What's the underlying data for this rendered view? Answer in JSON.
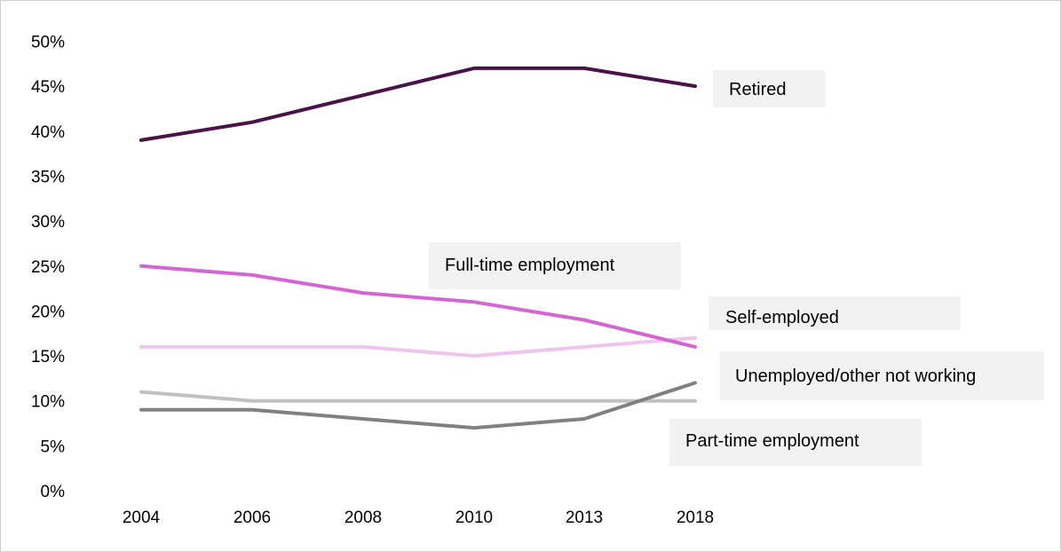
{
  "chart_data": {
    "type": "line",
    "title": "",
    "xlabel": "",
    "ylabel": "",
    "categories": [
      "2004",
      "2006",
      "2008",
      "2010",
      "2013",
      "2018"
    ],
    "ylim": [
      0,
      50
    ],
    "yticks": [
      "0%",
      "5%",
      "10%",
      "15%",
      "20%",
      "25%",
      "30%",
      "35%",
      "40%",
      "45%",
      "50%"
    ],
    "grid": false,
    "legend": "direct-labels",
    "series": [
      {
        "name": "Retired",
        "color": "#4b1248",
        "values": [
          39,
          41,
          44,
          47,
          47,
          45
        ]
      },
      {
        "name": "Full-time employment",
        "color": "#d366d3",
        "values": [
          25,
          24,
          22,
          21,
          19,
          16
        ]
      },
      {
        "name": "Self-employed",
        "color": "#f0c4ee",
        "values": [
          16,
          16,
          16,
          15,
          16,
          17
        ]
      },
      {
        "name": "Unemployed/other not working",
        "color": "#c0c0c0",
        "values": [
          11,
          10,
          10,
          10,
          10,
          10
        ]
      },
      {
        "name": "Part-time employment",
        "color": "#808080",
        "values": [
          9,
          9,
          8,
          7,
          8,
          12
        ]
      }
    ]
  }
}
